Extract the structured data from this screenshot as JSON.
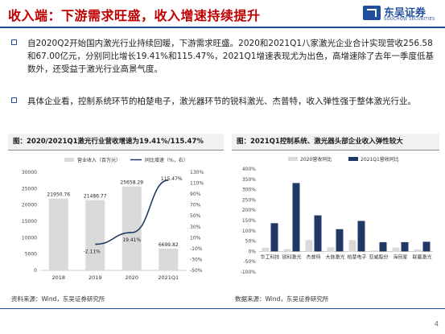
{
  "header": {
    "title": "收入端：下游需求旺盛，收入增速持续提升",
    "logo_cn": "东吴证券",
    "logo_en": "SOOCHOW SECURITIES"
  },
  "bullets": [
    {
      "text": "自2020Q2开始国内激光行业持续回暖，下游需求旺盛。2020和2021Q1八家激光企业合计实现营收256.58和67.00亿元，分别同比增长19.41%和115.47%，2021Q1增速表现尤为出色，高增速除了去年一季度低基数外，还受益于激光行业高景气度。"
    },
    {
      "text": "具体企业看，控制系统环节的柏楚电子，激光器环节的锐科激光、杰普特，收入弹性强于整体激光行业。"
    }
  ],
  "chart_left": {
    "title": "图：2020/2021Q1激光行业营收增速为19.41%/115.47%",
    "source": "资料来源：Wind，东吴证券研究所"
  },
  "chart_right": {
    "title": "图：2021Q1控制系统、激光器头部企业收入弹性较大",
    "source": "数据来源：Wind，东吴证券研究所"
  },
  "page_number": "4",
  "colors": {
    "brand": "#1f4e9c",
    "title_red": "#c00000",
    "bar_gray": "#d9d9d9",
    "bar_navy": "#1f3864"
  },
  "chart_data": [
    {
      "type": "bar",
      "categories": [
        "2018",
        "2019",
        "2020",
        "2021Q1"
      ],
      "series": [
        {
          "name": "营业收入（百万元）",
          "values": [
            21950.76,
            21486.77,
            25658.29,
            6699.82
          ],
          "labels": [
            "21950.76",
            "21486.77",
            "25658.29",
            "6699.82"
          ],
          "axis": "left",
          "kind": "bar"
        },
        {
          "name": "同比增速（%，右）",
          "values": [
            null,
            -2.11,
            19.41,
            115.47
          ],
          "labels": [
            "",
            "-2.11%",
            "19.41%",
            "115.47%"
          ],
          "axis": "right",
          "kind": "line"
        }
      ],
      "ylim": [
        0,
        30000
      ],
      "yticks": [
        "0",
        "5000",
        "10000",
        "15000",
        "20000",
        "25000",
        "30000"
      ],
      "y2lim": [
        -50,
        130
      ],
      "y2ticks": [
        "-50%",
        "-30%",
        "-10%",
        "10%",
        "30%",
        "50%",
        "70%",
        "90%",
        "110%",
        "130%"
      ]
    },
    {
      "type": "bar",
      "categories": [
        "华工科技",
        "锐科激光",
        "杰普特",
        "大族激光",
        "柏楚电子",
        "亚威股份",
        "海目星",
        "联赢激光"
      ],
      "series": [
        {
          "name": "2020营收同比",
          "values": [
            18,
            11,
            55,
            20,
            55,
            5,
            19,
            10
          ]
        },
        {
          "name": "2021Q1营收同比",
          "values": [
            137,
            332,
            175,
            108,
            148,
            45,
            45,
            47
          ]
        }
      ],
      "ylim": [
        -100,
        400
      ],
      "yticks": [
        "-100%",
        "-50%",
        "0%",
        "50%",
        "100%",
        "150%",
        "200%",
        "250%",
        "300%",
        "350%",
        "400%"
      ]
    }
  ]
}
